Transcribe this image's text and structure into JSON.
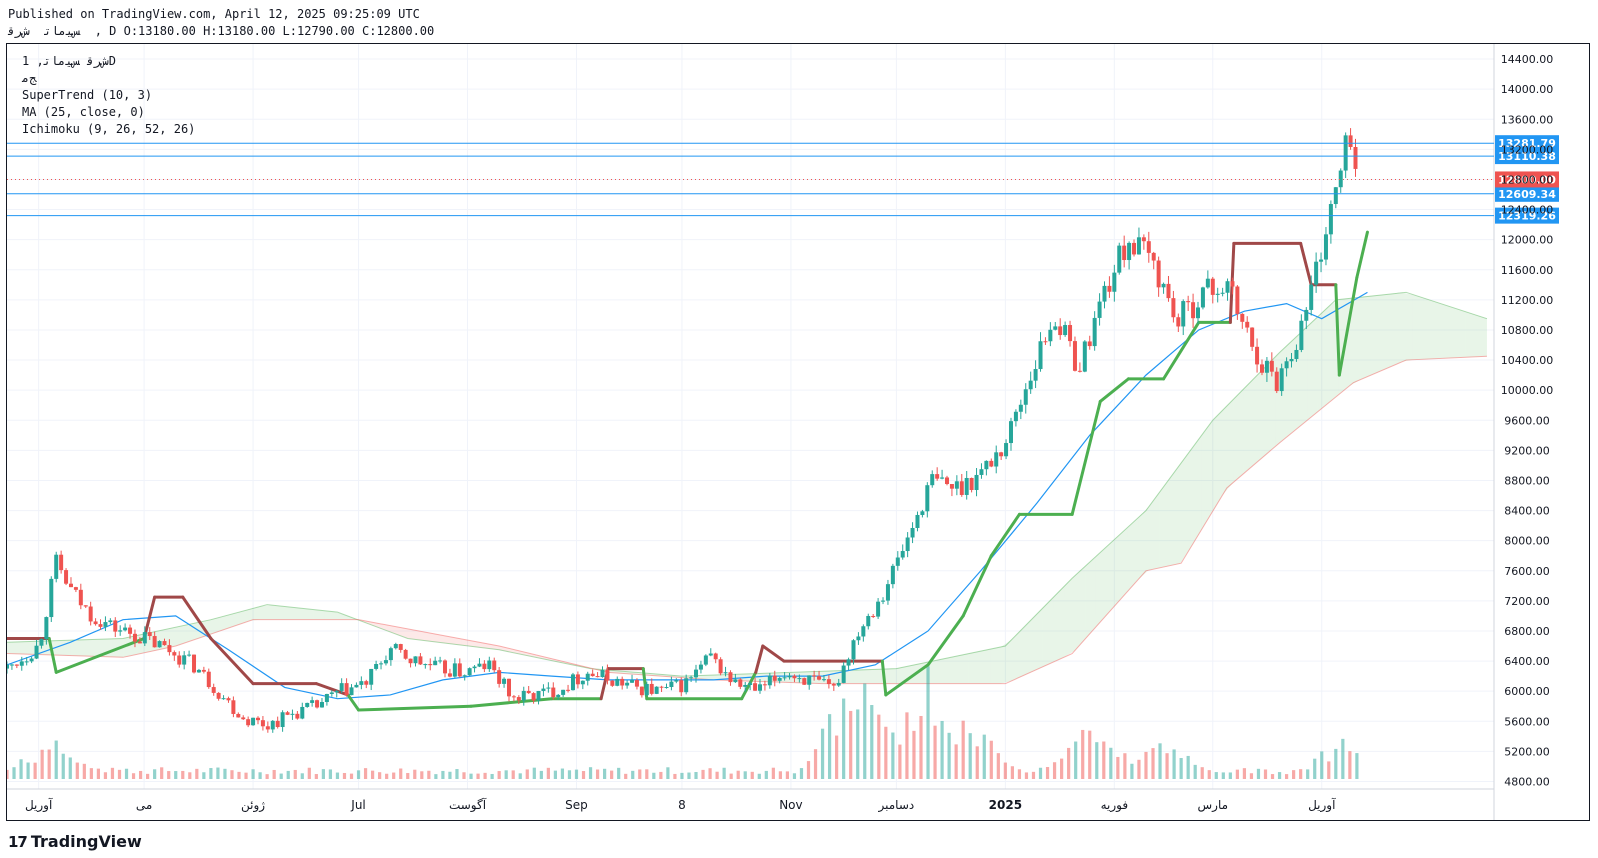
{
  "header": {
    "published": "Published on TradingView.com, April 12, 2025 09:25:09 UTC",
    "ohlc": "ﺲﻴﻣﺎﺗ  ﺵﺮﻗ  , D O:13180.00 H:13180.00 L:12790.00 C:12800.00"
  },
  "legend": {
    "symbol": "ﺵﺮﻗ ﺲﻴﻣﺎﺗ, 1D",
    "exchange": "ﺞﻣ",
    "supertrend": "SuperTrend (10, 3)",
    "ma": "MA (25, close, 0)",
    "ichimoku": "Ichimoku (9, 26, 52, 26)"
  },
  "brand": {
    "name": "TradingView",
    "logo": "17"
  },
  "colors": {
    "up": "#26a69a",
    "down": "#ef5350",
    "supertrend_up": "#4caf50",
    "supertrend_down": "#a04848",
    "ma": "#2196f3",
    "hline": "#2196f3",
    "last_price": "#ef5350",
    "cloud_bull": "#4caf50",
    "cloud_bear": "#ef5350"
  },
  "chart_data": {
    "type": "candlestick",
    "x_range": [
      "2024-03-23",
      "2025-05-20"
    ],
    "ylim": [
      4700,
      14600
    ],
    "y_ticks": [
      4800,
      5200,
      5600,
      6000,
      6400,
      6800,
      7200,
      7600,
      8000,
      8400,
      8800,
      9200,
      9600,
      10000,
      10400,
      10800,
      11200,
      11600,
      12000,
      12400,
      12800,
      13200,
      13600,
      14000,
      14400
    ],
    "x_ticks": [
      {
        "date": "2024-04-01",
        "label": "آوریل"
      },
      {
        "date": "2024-05-01",
        "label": "می"
      },
      {
        "date": "2024-06-01",
        "label": "ژوئن"
      },
      {
        "date": "2024-07-01",
        "label": "Jul"
      },
      {
        "date": "2024-08-01",
        "label": "آگوست"
      },
      {
        "date": "2024-09-01",
        "label": "Sep"
      },
      {
        "date": "2024-10-01",
        "label": "8"
      },
      {
        "date": "2024-11-01",
        "label": "Nov"
      },
      {
        "date": "2024-12-01",
        "label": "دسامبر"
      },
      {
        "date": "2025-01-01",
        "label": "2025"
      },
      {
        "date": "2025-02-01",
        "label": "فوریه"
      },
      {
        "date": "2025-03-01",
        "label": "مارس"
      },
      {
        "date": "2025-04-01",
        "label": "آوریل"
      }
    ],
    "price_lines": [
      13281.79,
      13110.38,
      12609.34,
      12319.26
    ],
    "last_price": 12800.0,
    "last_price_label": "12800.00",
    "price_line_labels": [
      "13281.79",
      "13110.38",
      "12609.34",
      "12319.26"
    ],
    "candles_close": [
      [
        "2024-03-23",
        6300
      ],
      [
        "2024-04-01",
        6600
      ],
      [
        "2024-04-06",
        7700
      ],
      [
        "2024-04-10",
        7350
      ],
      [
        "2024-04-15",
        7050
      ],
      [
        "2024-04-22",
        6850
      ],
      [
        "2024-05-01",
        6700
      ],
      [
        "2024-05-08",
        6550
      ],
      [
        "2024-05-15",
        6350
      ],
      [
        "2024-05-22",
        6000
      ],
      [
        "2024-05-29",
        5650
      ],
      [
        "2024-06-05",
        5550
      ],
      [
        "2024-06-12",
        5700
      ],
      [
        "2024-06-19",
        5800
      ],
      [
        "2024-06-26",
        6000
      ],
      [
        "2024-07-03",
        6100
      ],
      [
        "2024-07-10",
        6550
      ],
      [
        "2024-07-17",
        6400
      ],
      [
        "2024-07-24",
        6300
      ],
      [
        "2024-07-31",
        6250
      ],
      [
        "2024-08-07",
        6350
      ],
      [
        "2024-08-14",
        5900
      ],
      [
        "2024-08-21",
        5950
      ],
      [
        "2024-08-28",
        6050
      ],
      [
        "2024-09-04",
        6250
      ],
      [
        "2024-09-11",
        6150
      ],
      [
        "2024-09-18",
        6050
      ],
      [
        "2024-09-25",
        6000
      ],
      [
        "2024-10-02",
        6100
      ],
      [
        "2024-10-09",
        6450
      ],
      [
        "2024-10-16",
        6100
      ],
      [
        "2024-10-23",
        6000
      ],
      [
        "2024-10-30",
        6250
      ],
      [
        "2024-11-06",
        6150
      ],
      [
        "2024-11-13",
        6000
      ],
      [
        "2024-11-20",
        6800
      ],
      [
        "2024-11-27",
        7300
      ],
      [
        "2024-12-04",
        8000
      ],
      [
        "2024-12-11",
        8800
      ],
      [
        "2024-12-18",
        8700
      ],
      [
        "2024-12-25",
        8900
      ],
      [
        "2025-01-01",
        9300
      ],
      [
        "2025-01-08",
        10200
      ],
      [
        "2025-01-15",
        11000
      ],
      [
        "2025-01-22",
        10300
      ],
      [
        "2025-01-29",
        11300
      ],
      [
        "2025-02-05",
        12000
      ],
      [
        "2025-02-12",
        11700
      ],
      [
        "2025-02-19",
        10900
      ],
      [
        "2025-02-26",
        11300
      ],
      [
        "2025-03-05",
        11400
      ],
      [
        "2025-03-12",
        10600
      ],
      [
        "2025-03-19",
        10100
      ],
      [
        "2025-03-26",
        10800
      ],
      [
        "2025-04-02",
        12100
      ],
      [
        "2025-04-07",
        13000
      ],
      [
        "2025-04-09",
        13500
      ],
      [
        "2025-04-11",
        12800
      ]
    ],
    "supertrend": [
      [
        "2024-03-23",
        6700,
        "down"
      ],
      [
        "2024-04-04",
        6700,
        "down"
      ],
      [
        "2024-04-06",
        6250,
        "up"
      ],
      [
        "2024-05-01",
        6700,
        "up"
      ],
      [
        "2024-05-04",
        7250,
        "down"
      ],
      [
        "2024-05-12",
        7250,
        "down"
      ],
      [
        "2024-05-20",
        6700,
        "down"
      ],
      [
        "2024-06-01",
        6100,
        "down"
      ],
      [
        "2024-06-19",
        6100,
        "down"
      ],
      [
        "2024-06-28",
        5950,
        "down"
      ],
      [
        "2024-07-01",
        5750,
        "up"
      ],
      [
        "2024-08-02",
        5800,
        "up"
      ],
      [
        "2024-08-25",
        5900,
        "up"
      ],
      [
        "2024-09-08",
        5900,
        "up"
      ],
      [
        "2024-09-10",
        6300,
        "down"
      ],
      [
        "2024-09-20",
        6300,
        "down"
      ],
      [
        "2024-09-21",
        5900,
        "up"
      ],
      [
        "2024-10-18",
        5900,
        "up"
      ],
      [
        "2024-10-22",
        6250,
        "up"
      ],
      [
        "2024-10-24",
        6600,
        "down"
      ],
      [
        "2024-10-30",
        6400,
        "down"
      ],
      [
        "2024-11-27",
        6400,
        "down"
      ],
      [
        "2024-11-28",
        5950,
        "up"
      ],
      [
        "2024-12-10",
        6350,
        "up"
      ],
      [
        "2024-12-20",
        7000,
        "up"
      ],
      [
        "2024-12-28",
        7800,
        "up"
      ],
      [
        "2025-01-05",
        8350,
        "up"
      ],
      [
        "2025-01-20",
        8350,
        "up"
      ],
      [
        "2025-01-28",
        9850,
        "up"
      ],
      [
        "2025-02-05",
        10150,
        "up"
      ],
      [
        "2025-02-15",
        10150,
        "up"
      ],
      [
        "2025-02-25",
        10900,
        "up"
      ],
      [
        "2025-03-06",
        10900,
        "up"
      ],
      [
        "2025-03-07",
        11950,
        "down"
      ],
      [
        "2025-03-26",
        11950,
        "down"
      ],
      [
        "2025-03-29",
        11400,
        "down"
      ],
      [
        "2025-04-05",
        11400,
        "down"
      ],
      [
        "2025-04-06",
        10200,
        "up"
      ],
      [
        "2025-04-11",
        11500,
        "up"
      ],
      [
        "2025-04-14",
        12100,
        "up"
      ]
    ],
    "ma25": [
      [
        "2024-03-23",
        6350
      ],
      [
        "2024-04-10",
        6650
      ],
      [
        "2024-04-25",
        6950
      ],
      [
        "2024-05-10",
        7000
      ],
      [
        "2024-05-25",
        6550
      ],
      [
        "2024-06-10",
        6050
      ],
      [
        "2024-06-25",
        5900
      ],
      [
        "2024-07-10",
        5950
      ],
      [
        "2024-07-25",
        6150
      ],
      [
        "2024-08-10",
        6250
      ],
      [
        "2024-08-25",
        6200
      ],
      [
        "2024-09-10",
        6150
      ],
      [
        "2024-09-25",
        6150
      ],
      [
        "2024-10-10",
        6150
      ],
      [
        "2024-10-25",
        6200
      ],
      [
        "2024-11-10",
        6200
      ],
      [
        "2024-11-25",
        6350
      ],
      [
        "2024-12-10",
        6800
      ],
      [
        "2024-12-25",
        7600
      ],
      [
        "2025-01-10",
        8500
      ],
      [
        "2025-01-25",
        9400
      ],
      [
        "2025-02-10",
        10200
      ],
      [
        "2025-02-25",
        10800
      ],
      [
        "2025-03-10",
        11050
      ],
      [
        "2025-03-22",
        11150
      ],
      [
        "2025-04-01",
        10950
      ],
      [
        "2025-04-14",
        11300
      ]
    ],
    "cloud_span_a": [
      [
        "2024-03-23",
        6650
      ],
      [
        "2024-04-25",
        6700
      ],
      [
        "2024-05-20",
        6950
      ],
      [
        "2024-06-05",
        7150
      ],
      [
        "2024-06-25",
        7050
      ],
      [
        "2024-07-15",
        6700
      ],
      [
        "2024-08-10",
        6550
      ],
      [
        "2024-09-05",
        6300
      ],
      [
        "2024-10-01",
        6200
      ],
      [
        "2024-11-01",
        6250
      ],
      [
        "2024-12-01",
        6300
      ],
      [
        "2025-01-01",
        6600
      ],
      [
        "2025-01-20",
        7500
      ],
      [
        "2025-02-10",
        8400
      ],
      [
        "2025-03-01",
        9600
      ],
      [
        "2025-03-20",
        10500
      ],
      [
        "2025-04-05",
        11200
      ],
      [
        "2025-04-25",
        11300
      ],
      [
        "2025-05-18",
        10950
      ]
    ],
    "cloud_span_b": [
      [
        "2024-03-23",
        6500
      ],
      [
        "2024-04-25",
        6450
      ],
      [
        "2024-05-10",
        6600
      ],
      [
        "2024-06-01",
        6950
      ],
      [
        "2024-07-01",
        6950
      ],
      [
        "2024-08-10",
        6600
      ],
      [
        "2024-09-10",
        6250
      ],
      [
        "2024-10-10",
        6150
      ],
      [
        "2024-11-10",
        6100
      ],
      [
        "2024-12-10",
        6100
      ],
      [
        "2025-01-01",
        6100
      ],
      [
        "2025-01-20",
        6500
      ],
      [
        "2025-02-10",
        7600
      ],
      [
        "2025-02-20",
        7700
      ],
      [
        "2025-03-05",
        8700
      ],
      [
        "2025-03-20",
        9300
      ],
      [
        "2025-04-10",
        10100
      ],
      [
        "2025-04-25",
        10400
      ],
      [
        "2025-05-18",
        10450
      ]
    ],
    "volume_peaks": [
      [
        "2024-04-05",
        0.35
      ],
      [
        "2024-11-20",
        1.0
      ],
      [
        "2024-12-10",
        0.95
      ],
      [
        "2024-12-20",
        0.6
      ],
      [
        "2025-01-25",
        0.55
      ],
      [
        "2025-02-15",
        0.35
      ],
      [
        "2025-04-08",
        0.4
      ]
    ]
  }
}
